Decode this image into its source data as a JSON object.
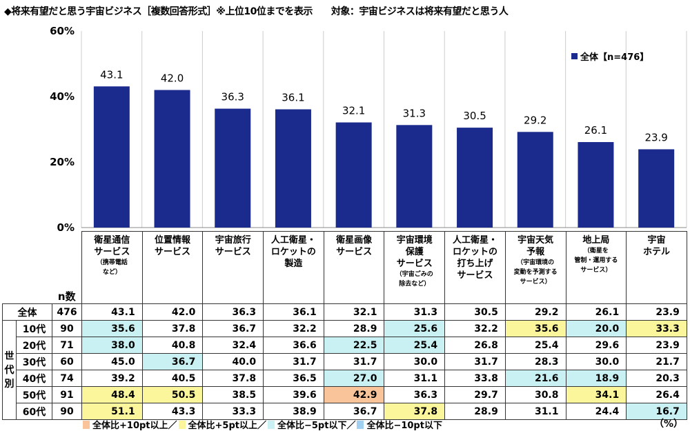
{
  "title": "◆将来有望だと思う宇宙ビジネス［複数回答形式］※上位10位までを表示　　対象：宇宙ビジネスは将来有望だと思う人",
  "legend_label": "全体【n=476】",
  "colors": {
    "bar": "#1b2a8d",
    "plus10": "#f9c49a",
    "plus5": "#fbf59b",
    "minus5": "#c9f1f4",
    "minus10": "#9fd0f0"
  },
  "chart_data": {
    "type": "bar",
    "title": "将来有望だと思う宇宙ビジネス",
    "ylim": [
      0,
      60
    ],
    "yticks": [
      "0%",
      "20%",
      "40%",
      "60%"
    ],
    "ytick_values": [
      0,
      20,
      40,
      60
    ],
    "series": [
      {
        "name": "全体【n=476】",
        "values": [
          43.1,
          42.0,
          36.3,
          36.1,
          32.1,
          31.3,
          30.5,
          29.2,
          26.1,
          23.9
        ]
      }
    ],
    "value_labels": [
      "43.1",
      "42.0",
      "36.3",
      "36.1",
      "32.1",
      "31.3",
      "30.5",
      "29.2",
      "26.1",
      "23.9"
    ],
    "categories": [
      {
        "main": "衛星通信\nサービス",
        "sub": "（携帯電話\nなど）"
      },
      {
        "main": "位置情報\nサービス",
        "sub": ""
      },
      {
        "main": "宇宙旅行\nサービス",
        "sub": ""
      },
      {
        "main": "人工衛星・\nロケットの\n製造",
        "sub": ""
      },
      {
        "main": "衛星画像\nサービス",
        "sub": ""
      },
      {
        "main": "宇宙環境\n保護\nサービス",
        "sub": "（宇宙ごみの\n除去など）"
      },
      {
        "main": "人工衛星・\nロケットの\n打ち上げ\nサービス",
        "sub": ""
      },
      {
        "main": "宇宙天気\n予報",
        "sub": "（宇宙環境の\n変動を予測する\nサービス）"
      },
      {
        "main": "地上局",
        "sub": "（衛星を\n管制・運用する\nサービス）"
      },
      {
        "main": "宇宙\nホテル",
        "sub": ""
      }
    ]
  },
  "table": {
    "n_header": "n数",
    "group_label": "世代別",
    "total": {
      "label": "全体",
      "n": "476",
      "values": [
        "43.1",
        "42.0",
        "36.3",
        "36.1",
        "32.1",
        "31.3",
        "30.5",
        "29.2",
        "26.1",
        "23.9"
      ]
    },
    "rows": [
      {
        "label": "10代",
        "n": "90",
        "values": [
          "35.6",
          "37.8",
          "36.7",
          "32.2",
          "28.9",
          "25.6",
          "32.2",
          "35.6",
          "20.0",
          "33.3"
        ]
      },
      {
        "label": "20代",
        "n": "71",
        "values": [
          "38.0",
          "40.8",
          "32.4",
          "36.6",
          "22.5",
          "25.4",
          "26.8",
          "25.4",
          "29.6",
          "23.9"
        ]
      },
      {
        "label": "30代",
        "n": "60",
        "values": [
          "45.0",
          "36.7",
          "40.0",
          "31.7",
          "31.7",
          "30.0",
          "31.7",
          "28.3",
          "30.0",
          "21.7"
        ]
      },
      {
        "label": "40代",
        "n": "74",
        "values": [
          "39.2",
          "40.5",
          "37.8",
          "36.5",
          "27.0",
          "31.1",
          "33.8",
          "21.6",
          "18.9",
          "20.3"
        ]
      },
      {
        "label": "50代",
        "n": "91",
        "values": [
          "48.4",
          "50.5",
          "38.5",
          "39.6",
          "42.9",
          "36.3",
          "29.7",
          "30.8",
          "34.1",
          "26.4"
        ]
      },
      {
        "label": "60代",
        "n": "90",
        "values": [
          "51.1",
          "43.3",
          "33.3",
          "38.9",
          "36.7",
          "37.8",
          "28.9",
          "31.1",
          "24.4",
          "16.7"
        ]
      }
    ]
  },
  "footer": {
    "items": [
      "全体比+10pt以上／",
      "全体比+5pt以上／",
      "全体比−5pt以下／",
      "全体比−10pt以下"
    ],
    "unit": "（%）"
  }
}
